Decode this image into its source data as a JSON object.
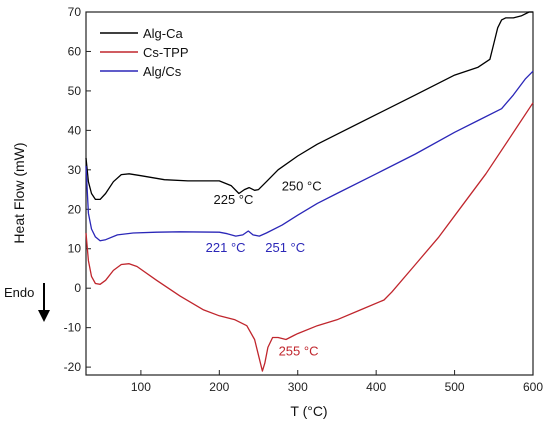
{
  "chart_data": {
    "type": "line",
    "title": "",
    "xlabel": "T (°C)",
    "ylabel": "Heat Flow (mW)",
    "xlim": [
      30,
      600
    ],
    "ylim": [
      -22,
      70
    ],
    "xticks": [
      100,
      200,
      300,
      400,
      500,
      600
    ],
    "yticks": [
      -20,
      -10,
      0,
      10,
      20,
      30,
      40,
      50,
      60,
      70
    ],
    "grid": false,
    "legend_position": "top-left",
    "endo_label": "Endo",
    "series": [
      {
        "name": "Alg-Ca",
        "color": "#000000",
        "x": [
          30,
          33,
          37,
          42,
          48,
          55,
          65,
          75,
          85,
          100,
          130,
          160,
          200,
          215,
          225,
          232,
          238,
          245,
          250,
          260,
          275,
          300,
          325,
          350,
          400,
          450,
          500,
          530,
          545,
          550,
          555,
          560,
          565,
          575,
          585,
          595,
          600
        ],
        "y": [
          33,
          27,
          24,
          22.5,
          22.5,
          24,
          27,
          28.8,
          29,
          28.5,
          27.5,
          27.2,
          27.2,
          26,
          24,
          25,
          25.5,
          24.8,
          25,
          27,
          30,
          33.5,
          36.5,
          39,
          44,
          49,
          54,
          56,
          58,
          62,
          66,
          68,
          68.5,
          68.5,
          69,
          70,
          70
        ]
      },
      {
        "name": "Cs-TPP",
        "color": "#c0262d",
        "x": [
          30,
          33,
          37,
          42,
          48,
          55,
          65,
          75,
          85,
          95,
          120,
          150,
          180,
          200,
          220,
          235,
          245,
          250,
          255,
          258,
          262,
          268,
          275,
          285,
          295,
          300,
          325,
          350,
          380,
          410,
          420,
          450,
          480,
          510,
          540,
          570,
          600
        ],
        "y": [
          14,
          7,
          3,
          1.2,
          1,
          2,
          4.5,
          6,
          6.2,
          5.5,
          2,
          -2,
          -5.5,
          -7,
          -8,
          -9.5,
          -13,
          -17,
          -21,
          -19,
          -15,
          -12.5,
          -12.5,
          -13,
          -12,
          -11.5,
          -9.5,
          -8,
          -5.5,
          -3,
          -1,
          6,
          13,
          21,
          29,
          38,
          47
        ]
      },
      {
        "name": "Alg/Cs",
        "color": "#2b27b8",
        "x": [
          30,
          33,
          37,
          42,
          48,
          55,
          70,
          90,
          120,
          150,
          200,
          210,
          221,
          230,
          237,
          243,
          251,
          260,
          280,
          300,
          325,
          350,
          400,
          450,
          500,
          530,
          560,
          575,
          590,
          600
        ],
        "y": [
          31,
          19,
          15,
          13,
          12,
          12.3,
          13.5,
          14,
          14.2,
          14.3,
          14.2,
          13.8,
          13.2,
          13.5,
          14.5,
          13.5,
          13.2,
          14,
          16,
          18.5,
          21.5,
          24,
          29,
          34,
          39.5,
          42.5,
          45.5,
          49,
          53,
          55
        ]
      }
    ],
    "annotations": [
      {
        "text": "225 °C",
        "x": 218,
        "y": 21.3,
        "series": "Alg-Ca"
      },
      {
        "text": "250 °C",
        "x": 305,
        "y": 24.8,
        "series": "Alg-Ca"
      },
      {
        "text": "221 °C",
        "x": 208,
        "y": 9.2,
        "series": "Alg/Cs"
      },
      {
        "text": "251 °C",
        "x": 284,
        "y": 9.2,
        "series": "Alg/Cs"
      },
      {
        "text": "255 °C",
        "x": 301,
        "y": -17,
        "series": "Cs-TPP"
      }
    ]
  }
}
